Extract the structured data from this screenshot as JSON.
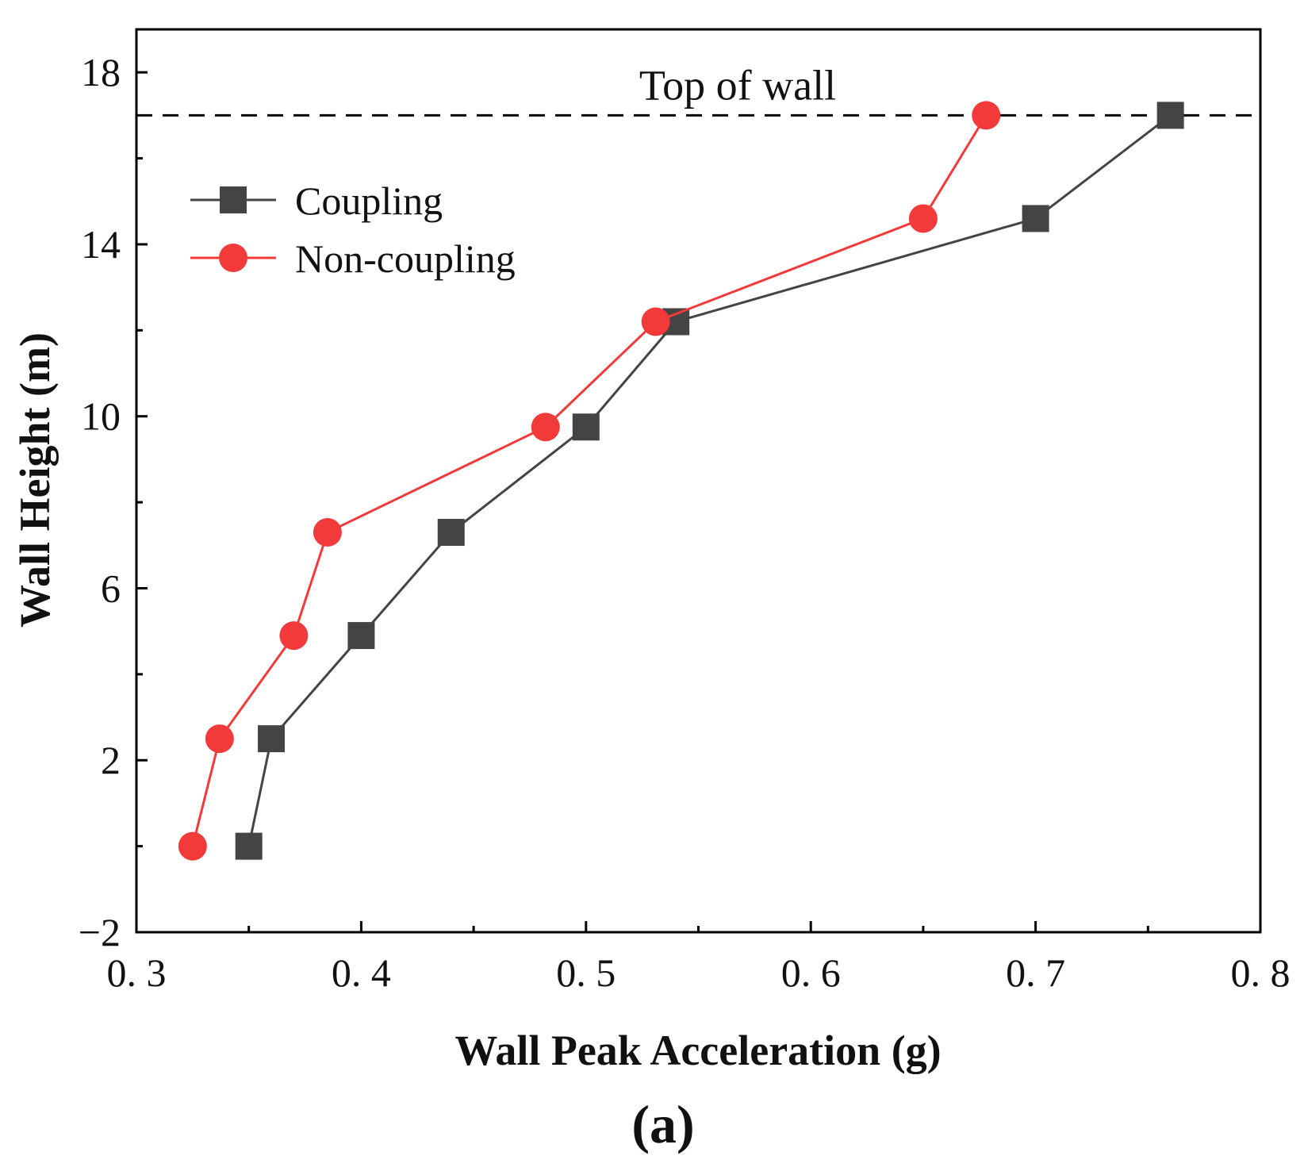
{
  "chart_data": {
    "type": "line",
    "title": "",
    "xlabel": "Wall Peak Acceleration (g)",
    "ylabel": "Wall Height (m)",
    "xlim": [
      0.3,
      0.8
    ],
    "ylim": [
      -2,
      19
    ],
    "x_ticks": [
      0.3,
      0.4,
      0.5,
      0.6,
      0.7,
      0.8
    ],
    "x_tick_labels": [
      "0. 3",
      "0. 4",
      "0. 5",
      "0. 6",
      "0. 7",
      "0. 8"
    ],
    "y_ticks": [
      -2,
      2,
      6,
      10,
      14,
      18
    ],
    "y_tick_labels": [
      "−2",
      "2",
      "6",
      "10",
      "14",
      "18"
    ],
    "grid": false,
    "legend_position": "top-left",
    "reference_line": {
      "y": 17,
      "label": "Top of wall",
      "style": "dashed",
      "color": "#000000"
    },
    "panel_label": "(a)",
    "series": [
      {
        "name": "Coupling",
        "marker": "square",
        "color": "#444444",
        "points": [
          [
            0.35,
            0.0
          ],
          [
            0.36,
            2.5
          ],
          [
            0.4,
            4.9
          ],
          [
            0.44,
            7.3
          ],
          [
            0.5,
            9.75
          ],
          [
            0.54,
            12.2
          ],
          [
            0.7,
            14.6
          ],
          [
            0.76,
            17.0
          ]
        ]
      },
      {
        "name": "Non-coupling",
        "marker": "circle",
        "color": "#f23a3a",
        "points": [
          [
            0.325,
            0.0
          ],
          [
            0.337,
            2.5
          ],
          [
            0.37,
            4.9
          ],
          [
            0.385,
            7.3
          ],
          [
            0.482,
            9.75
          ],
          [
            0.531,
            12.2
          ],
          [
            0.65,
            14.6
          ],
          [
            0.678,
            17.0
          ]
        ]
      }
    ]
  }
}
